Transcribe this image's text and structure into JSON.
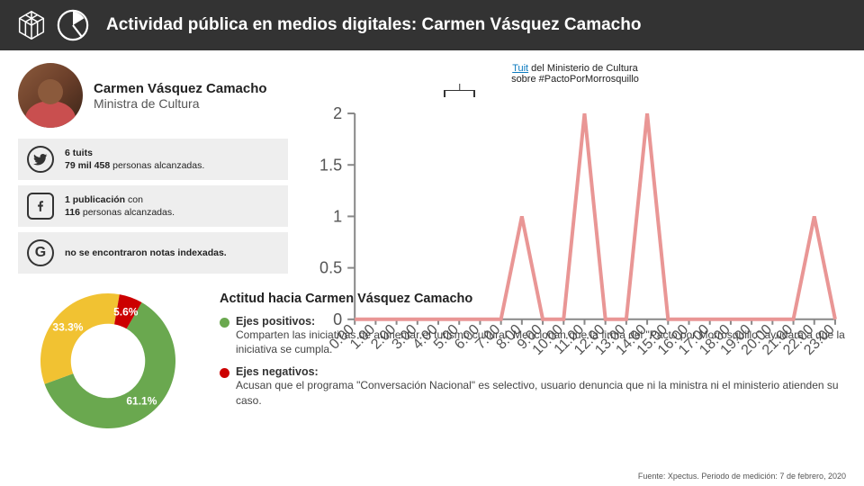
{
  "header": {
    "title": "Actividad pública en medios digitales: Carmen Vásquez Camacho",
    "bg_color": "#333333",
    "text_color": "#ffffff"
  },
  "profile": {
    "name": "Carmen Vásquez Camacho",
    "role": "Ministra de Cultura"
  },
  "stats": [
    {
      "icon": "twitter",
      "line1_bold": "6 tuits",
      "line2_bold": "79 mil 458",
      "line2_rest": " personas alcanzadas."
    },
    {
      "icon": "facebook",
      "line1_bold": "1 publicación",
      "line1_rest": " con",
      "line2_bold": "116",
      "line2_rest": " personas alcanzadas."
    },
    {
      "icon": "google",
      "line1_bold": "no se encontraron notas indexadas."
    }
  ],
  "line_chart": {
    "type": "line",
    "annotation_link_text": "Tuit",
    "annotation_rest": " del Ministerio de Cultura",
    "annotation_line2": "sobre #PactoPorMorrosquillo",
    "x_hours": [
      "0:00",
      "1:00",
      "2:00",
      "3:00",
      "4:00",
      "5:00",
      "6:00",
      "7:00",
      "8:00",
      "9:00",
      "10:00",
      "11:00",
      "12:00",
      "13:00",
      "14:00",
      "15:00",
      "16:00",
      "17:00",
      "18:00",
      "19:00",
      "20:00",
      "21:00",
      "22:00",
      "23:00"
    ],
    "y_values": [
      0,
      0,
      0,
      0,
      0,
      0,
      0,
      0,
      1,
      0,
      0,
      2,
      0,
      0,
      2,
      0,
      0,
      0,
      0,
      0,
      0,
      0,
      1,
      0
    ],
    "ylim": [
      0,
      2
    ],
    "ytick_step": 0.5,
    "line_color": "#e99695",
    "axis_color": "#888888",
    "tick_font_size": 8,
    "brace_start_index": 11,
    "brace_end_index": 14
  },
  "donut": {
    "type": "donut",
    "slices": [
      {
        "label": "61.1%",
        "value": 61.1,
        "color": "#6aa84f"
      },
      {
        "label": "33.3%",
        "value": 33.3,
        "color": "#f1c232"
      },
      {
        "label": "5.6%",
        "value": 5.6,
        "color": "#cc0000"
      }
    ],
    "start_angle_deg": -60,
    "inner_radius_pct": 55,
    "background_color": "#ffffff"
  },
  "attitude": {
    "title": "Actitud hacia Carmen Vásquez Camacho",
    "positive": {
      "dot_color": "#6aa84f",
      "label": "Ejes positivos:",
      "text": "Comparten las iniciativas de aumentar el turismo cultural. Mencionan que la firma del \"Pacto por Morrosquillo\" ayudará a que la iniciativa se cumpla."
    },
    "negative": {
      "dot_color": "#cc0000",
      "label": "Ejes negativos:",
      "text": "Acusan que el programa \"Conversación Nacional\" es selectivo, usuario denuncia que ni la ministra ni el ministerio atienden su caso."
    }
  },
  "source": "Fuente: Xpectus. Periodo de medición:  7 de febrero, 2020"
}
